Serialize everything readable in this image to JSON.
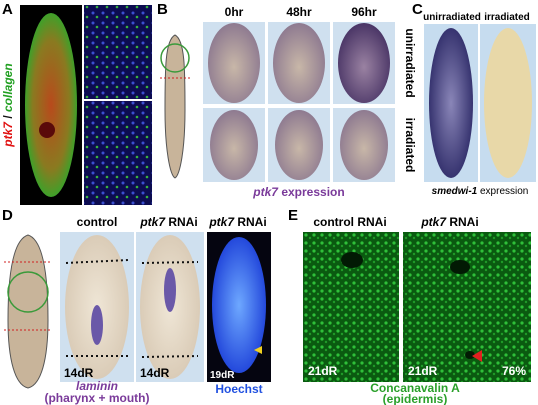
{
  "panel_a": {
    "letter": "A",
    "label_gene": "ptk7",
    "label_sep": " / ",
    "label_gene2": "collagen"
  },
  "panel_b": {
    "letter": "B",
    "columns": [
      "0hr",
      "48hr",
      "96hr"
    ],
    "rows": [
      "unirradiated",
      "irradiated"
    ],
    "caption_gene": "ptk7",
    "caption_rest": " expression"
  },
  "panel_c": {
    "letter": "C",
    "columns": [
      "unirradiated",
      "irradiated"
    ],
    "caption_gene": "smedwi-1",
    "caption_rest": " expression"
  },
  "panel_d": {
    "letter": "D",
    "col1": "control",
    "col2_gene": "ptk7",
    "col2_rest": " RNAi",
    "col3_gene": "ptk7",
    "col3_rest": " RNAi",
    "day1": "14dR",
    "day2": "14dR",
    "day3": "19dR",
    "caption_gene": "laminin",
    "caption_sub": "(pharynx + mouth)",
    "stain": "Hoechst"
  },
  "panel_e": {
    "letter": "E",
    "col1": "control RNAi",
    "col2_gene": "ptk7",
    "col2_rest": " RNAi",
    "day1": "21dR",
    "day2": "21dR",
    "percent": "76%",
    "caption": "Concanavalin A",
    "caption_sub": "(epidermis)"
  }
}
